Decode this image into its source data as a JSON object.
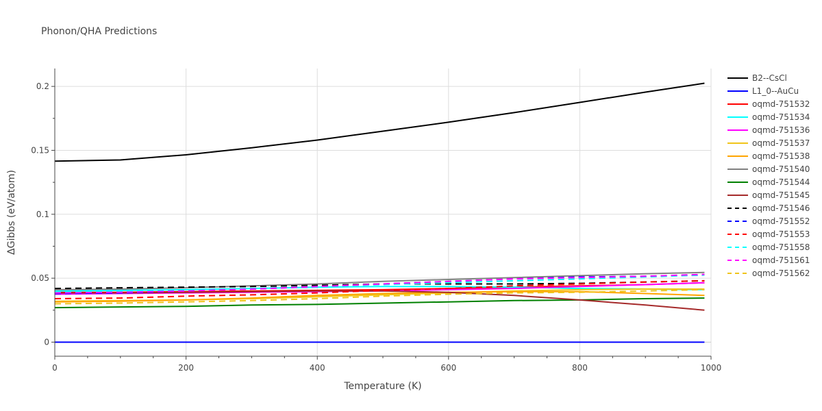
{
  "chart_data": {
    "type": "line",
    "title": "Phonon/QHA Predictions",
    "xlabel": "Temperature (K)",
    "ylabel": "ΔGibbs (eV/atom)",
    "xlim": [
      0,
      1000
    ],
    "ylim": [
      -0.011,
      0.214
    ],
    "xticks": [
      0,
      200,
      400,
      600,
      800,
      1000
    ],
    "xtick_labels": [
      "0",
      "200",
      "400",
      "600",
      "800",
      "1000"
    ],
    "yticks": [
      0,
      0.05,
      0.1,
      0.15,
      0.2
    ],
    "ytick_labels": [
      "0",
      "0.05",
      "0.1",
      "0.15",
      "0.2"
    ],
    "grid": true,
    "legend_position": "right",
    "x": [
      0,
      100,
      200,
      300,
      400,
      500,
      600,
      700,
      800,
      900,
      990
    ],
    "series": [
      {
        "name": "B2--CsCl",
        "color": "#000000",
        "dash": "solid",
        "values": [
          0.1415,
          0.1425,
          0.1465,
          0.152,
          0.158,
          0.165,
          0.172,
          0.1795,
          0.1875,
          0.1955,
          0.2025
        ]
      },
      {
        "name": "L1_0--AuCu",
        "color": "#0000ff",
        "dash": "solid",
        "values": [
          0,
          0,
          0,
          0,
          0,
          0,
          0,
          0,
          0,
          0,
          0
        ]
      },
      {
        "name": "oqmd-751532",
        "color": "#ff0000",
        "dash": "solid",
        "values": [
          0.039,
          0.039,
          0.0395,
          0.04,
          0.0405,
          0.041,
          0.042,
          0.043,
          0.044,
          0.045,
          0.0465
        ]
      },
      {
        "name": "oqmd-751534",
        "color": "#00ffff",
        "dash": "solid",
        "values": [
          0.04,
          0.0405,
          0.041,
          0.042,
          0.043,
          0.0435,
          0.0435,
          0.043,
          0.042,
          0.0415,
          0.041
        ]
      },
      {
        "name": "oqmd-751536",
        "color": "#ff00ff",
        "dash": "solid",
        "values": [
          0.0375,
          0.038,
          0.0385,
          0.039,
          0.0395,
          0.04,
          0.041,
          0.042,
          0.0435,
          0.045,
          0.0465
        ]
      },
      {
        "name": "oqmd-751537",
        "color": "#f0c419",
        "dash": "solid",
        "values": [
          0.032,
          0.0325,
          0.033,
          0.034,
          0.0355,
          0.037,
          0.0385,
          0.04,
          0.041,
          0.0415,
          0.0415
        ]
      },
      {
        "name": "oqmd-751538",
        "color": "#ffa500",
        "dash": "solid",
        "values": [
          0.0315,
          0.032,
          0.033,
          0.0345,
          0.0365,
          0.038,
          0.039,
          0.0395,
          0.0395,
          0.038,
          0.0365
        ]
      },
      {
        "name": "oqmd-751540",
        "color": "#808080",
        "dash": "solid",
        "values": [
          0.041,
          0.0415,
          0.0425,
          0.044,
          0.0455,
          0.0475,
          0.049,
          0.0505,
          0.052,
          0.0535,
          0.0545
        ]
      },
      {
        "name": "oqmd-751544",
        "color": "#008000",
        "dash": "solid",
        "values": [
          0.027,
          0.0275,
          0.028,
          0.029,
          0.0295,
          0.0305,
          0.0315,
          0.0325,
          0.033,
          0.034,
          0.0345
        ]
      },
      {
        "name": "oqmd-751545",
        "color": "#a52a2a",
        "dash": "solid",
        "values": [
          0.0385,
          0.0385,
          0.039,
          0.0395,
          0.04,
          0.04,
          0.039,
          0.0365,
          0.033,
          0.029,
          0.025
        ]
      },
      {
        "name": "oqmd-751546",
        "color": "#000000",
        "dash": "dash",
        "values": [
          0.042,
          0.0425,
          0.043,
          0.0435,
          0.0445,
          0.0455,
          0.0455,
          0.0455,
          0.046,
          0.047,
          0.048
        ]
      },
      {
        "name": "oqmd-751552",
        "color": "#0000ff",
        "dash": "dash",
        "values": [
          0.038,
          0.0385,
          0.04,
          0.0415,
          0.0435,
          0.0455,
          0.0475,
          0.0495,
          0.051,
          0.0515,
          0.0525
        ]
      },
      {
        "name": "oqmd-751553",
        "color": "#ff0000",
        "dash": "dash",
        "values": [
          0.034,
          0.0345,
          0.036,
          0.037,
          0.0385,
          0.0405,
          0.042,
          0.044,
          0.0455,
          0.047,
          0.048
        ]
      },
      {
        "name": "oqmd-751558",
        "color": "#00ffff",
        "dash": "dash",
        "values": [
          0.039,
          0.0395,
          0.0405,
          0.042,
          0.0435,
          0.045,
          0.0465,
          0.048,
          0.0495,
          0.051,
          0.0525
        ]
      },
      {
        "name": "oqmd-751561",
        "color": "#ff00ff",
        "dash": "dash",
        "values": [
          0.0385,
          0.039,
          0.04,
          0.0415,
          0.0435,
          0.0455,
          0.0475,
          0.0495,
          0.0505,
          0.0515,
          0.053
        ]
      },
      {
        "name": "oqmd-751562",
        "color": "#f0c419",
        "dash": "dash",
        "values": [
          0.03,
          0.0305,
          0.0315,
          0.0325,
          0.034,
          0.036,
          0.0375,
          0.0385,
          0.039,
          0.04,
          0.041
        ]
      }
    ]
  }
}
